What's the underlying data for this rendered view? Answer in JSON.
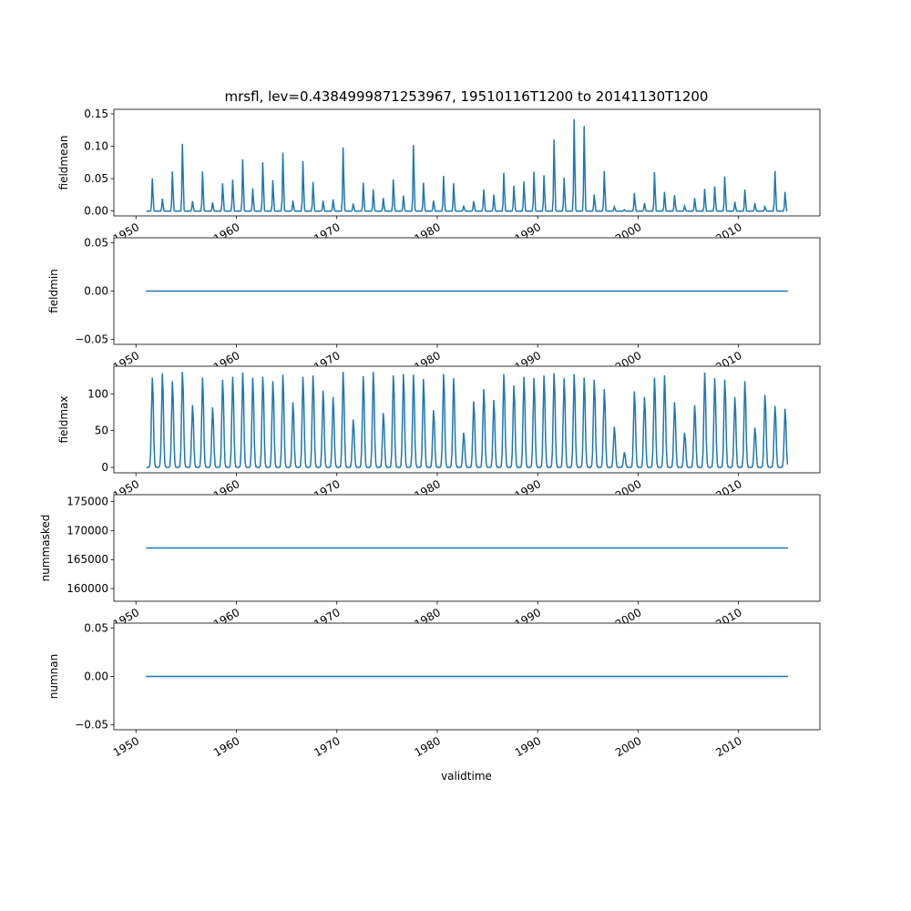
{
  "chart_data": {
    "type": "line",
    "title": "mrsfl, lev=0.4384999871253967, 19510116T1200 to 20141130T1200",
    "xlabel": "validtime",
    "xlim": [
      1947.8,
      2018.1
    ],
    "x_ticks": [
      1950,
      1960,
      1970,
      1980,
      1990,
      2000,
      2010
    ],
    "x_tick_labels": [
      "1950",
      "1960",
      "1970",
      "1980",
      "1990",
      "2000",
      "2010"
    ],
    "x_range": [
      "1951-01-16",
      "2014-11-30"
    ],
    "line_color": "#1f77b4",
    "peak_years": [
      1951,
      1952,
      1953,
      1954,
      1955,
      1956,
      1957,
      1958,
      1959,
      1960,
      1961,
      1962,
      1963,
      1964,
      1965,
      1966,
      1967,
      1968,
      1969,
      1970,
      1971,
      1972,
      1973,
      1974,
      1975,
      1976,
      1977,
      1978,
      1979,
      1980,
      1981,
      1982,
      1983,
      1984,
      1985,
      1986,
      1987,
      1988,
      1989,
      1990,
      1991,
      1992,
      1993,
      1994,
      1995,
      1996,
      1997,
      1998,
      1999,
      2000,
      2001,
      2002,
      2003,
      2004,
      2005,
      2006,
      2007,
      2008,
      2009,
      2010,
      2011,
      2012,
      2013,
      2014
    ],
    "subplots": [
      {
        "ylabel": "fieldmean",
        "ylim": [
          -0.0075,
          0.157
        ],
        "y_ticks": [
          0.0,
          0.05,
          0.1,
          0.15
        ],
        "y_tick_labels": [
          "0.00",
          "0.05",
          "0.10",
          "0.15"
        ],
        "kind": "seasonal",
        "width_months": 0.9,
        "annual_peaks": [
          0.053,
          0.02,
          0.064,
          0.109,
          0.016,
          0.064,
          0.014,
          0.045,
          0.051,
          0.084,
          0.037,
          0.079,
          0.05,
          0.095,
          0.017,
          0.081,
          0.047,
          0.017,
          0.019,
          0.103,
          0.012,
          0.046,
          0.035,
          0.021,
          0.051,
          0.025,
          0.107,
          0.046,
          0.017,
          0.057,
          0.045,
          0.009,
          0.016,
          0.035,
          0.027,
          0.062,
          0.041,
          0.048,
          0.064,
          0.058,
          0.116,
          0.054,
          0.149,
          0.138,
          0.027,
          0.065,
          0.007,
          0.002,
          0.029,
          0.013,
          0.063,
          0.031,
          0.026,
          0.008,
          0.021,
          0.036,
          0.04,
          0.056,
          0.015,
          0.035,
          0.013,
          0.007,
          0.065,
          0.031
        ]
      },
      {
        "ylabel": "fieldmin",
        "ylim": [
          -0.055,
          0.055
        ],
        "y_ticks": [
          -0.05,
          0.0,
          0.05
        ],
        "y_tick_labels": [
          "−0.05",
          "0.00",
          "0.05"
        ],
        "kind": "constant",
        "value": 0
      },
      {
        "ylabel": "fieldmax",
        "ylim": [
          -7.4,
          137.5
        ],
        "y_ticks": [
          0,
          50,
          100
        ],
        "y_tick_labels": [
          "0",
          "50",
          "100"
        ],
        "kind": "seasonal",
        "width_months": 1.6,
        "annual_peaks": [
          124,
          130,
          119,
          132,
          86,
          124,
          83,
          121,
          125,
          131,
          124,
          125,
          119,
          128,
          90,
          125,
          127,
          106,
          97,
          132,
          66,
          126,
          132,
          75,
          127,
          129,
          128,
          122,
          79,
          129,
          123,
          48,
          91,
          108,
          93,
          129,
          113,
          125,
          123,
          127,
          130,
          123,
          129,
          124,
          121,
          108,
          56,
          21,
          105,
          97,
          124,
          127,
          90,
          48,
          86,
          131,
          123,
          121,
          97,
          119,
          55,
          100,
          85,
          81
        ]
      },
      {
        "ylabel": "nummasked",
        "ylim": [
          157815,
          176185
        ],
        "y_ticks": [
          160000,
          165000,
          170000,
          175000
        ],
        "y_tick_labels": [
          "160000",
          "165000",
          "170000",
          "175000"
        ],
        "kind": "constant",
        "value": 167000
      },
      {
        "ylabel": "numnan",
        "ylim": [
          -0.055,
          0.055
        ],
        "y_ticks": [
          -0.05,
          0.0,
          0.05
        ],
        "y_tick_labels": [
          "−0.05",
          "0.00",
          "0.05"
        ],
        "kind": "constant",
        "value": 0
      }
    ]
  }
}
